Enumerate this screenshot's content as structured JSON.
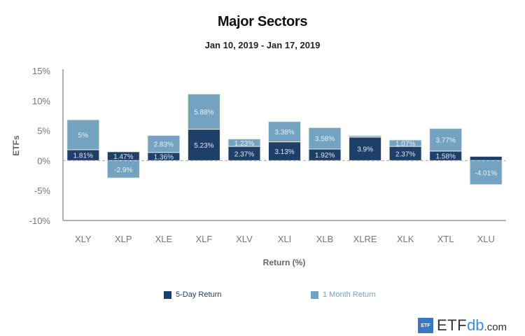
{
  "chart_data": {
    "type": "bar",
    "stacked": true,
    "title": "Major Sectors",
    "subtitle": "Jan 10, 2019 - Jan 17, 2019",
    "xlabel": "Return (%)",
    "ylabel": "ETFs",
    "ylim": [
      -10,
      15
    ],
    "yticks": [
      15,
      10,
      5,
      0,
      -5,
      -10
    ],
    "ytick_labels": [
      "15%",
      "10%",
      "5%",
      "0%",
      "-5%",
      "-10%"
    ],
    "categories": [
      "XLY",
      "XLP",
      "XLE",
      "XLF",
      "XLV",
      "XLI",
      "XLB",
      "XLRE",
      "XLK",
      "XTL",
      "XLU"
    ],
    "series": [
      {
        "name": "5-Day Return",
        "color": "#1f3f6b",
        "values": [
          1.81,
          1.47,
          1.36,
          5.23,
          2.37,
          3.13,
          1.92,
          3.9,
          2.37,
          1.58,
          0.7
        ],
        "labels": [
          "1.81%",
          "1.47%",
          "1.36%",
          "5.23%",
          "2.37%",
          "3.13%",
          "1.92%",
          "3.9%",
          "2.37%",
          "1.58%",
          ""
        ]
      },
      {
        "name": "1 Month Return",
        "color": "#74a3c1",
        "values": [
          5,
          -2.9,
          2.83,
          5.88,
          1.23,
          3.38,
          3.58,
          0.25,
          1.07,
          3.77,
          -4.01
        ],
        "labels": [
          "5%",
          "-2.9%",
          "2.83%",
          "5.88%",
          "1.23%",
          "3.38%",
          "3.58%",
          "",
          "1.07%",
          "3.77%",
          "-4.01%"
        ]
      }
    ],
    "legend_position": "bottom",
    "grid": false,
    "zero_line": "dashed"
  },
  "legend": {
    "items": [
      {
        "label": "5-Day Return",
        "color": "#1f3f6b"
      },
      {
        "label": "1 Month Return",
        "color": "#74a3c1"
      }
    ]
  },
  "brand": {
    "badge": "ETF",
    "name_part1": "ETF",
    "name_part2": "db",
    "name_part3": ".com"
  }
}
